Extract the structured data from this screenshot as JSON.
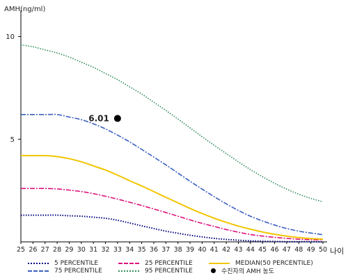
{
  "chart_data": {
    "type": "line",
    "title": "",
    "ylabel": "AMH(ng/ml)",
    "xlabel": "나이",
    "xlim": [
      25,
      50
    ],
    "ylim": [
      0,
      11
    ],
    "x_ticks": [
      25,
      26,
      27,
      28,
      29,
      30,
      31,
      32,
      33,
      34,
      35,
      36,
      37,
      38,
      39,
      40,
      41,
      42,
      43,
      44,
      45,
      46,
      47,
      48,
      49,
      50
    ],
    "y_ticks": [
      5,
      10
    ],
    "grid": false,
    "legend_position": "bottom",
    "series": [
      {
        "name": "5 PERCENTILE",
        "color": "#000080",
        "dash": "1.5 2",
        "width": 2,
        "x": [
          25,
          26,
          27,
          28,
          29,
          30,
          31,
          32,
          33,
          34,
          35,
          36,
          37,
          38,
          39,
          40,
          41,
          42,
          43,
          44,
          45,
          46,
          47,
          48,
          49,
          50
        ],
        "y": [
          1.3,
          1.3,
          1.3,
          1.3,
          1.27,
          1.25,
          1.2,
          1.15,
          1.05,
          0.92,
          0.78,
          0.65,
          0.52,
          0.42,
          0.32,
          0.24,
          0.17,
          0.12,
          0.08,
          0.05,
          0.03,
          0.02,
          0.01,
          0.01,
          0.01,
          0.0
        ]
      },
      {
        "name": "75 PERCENTILE",
        "color": "#3a5fc0",
        "dash": "7 2 2 2",
        "width": 1.6,
        "x": [
          25,
          26,
          27,
          28,
          29,
          30,
          31,
          32,
          33,
          34,
          35,
          36,
          37,
          38,
          39,
          40,
          41,
          42,
          43,
          44,
          45,
          46,
          47,
          48,
          49,
          50
        ],
        "y": [
          6.2,
          6.2,
          6.2,
          6.2,
          6.08,
          5.95,
          5.75,
          5.5,
          5.2,
          4.87,
          4.5,
          4.13,
          3.75,
          3.35,
          2.95,
          2.57,
          2.2,
          1.85,
          1.53,
          1.25,
          1.02,
          0.82,
          0.65,
          0.52,
          0.43,
          0.35
        ]
      },
      {
        "name": "25 PERCENTILE",
        "color": "#e0107a",
        "dash": "7 2 2 2",
        "width": 1.6,
        "x": [
          25,
          26,
          27,
          28,
          29,
          30,
          31,
          32,
          33,
          34,
          35,
          36,
          37,
          38,
          39,
          40,
          41,
          42,
          43,
          44,
          45,
          46,
          47,
          48,
          49,
          50
        ],
        "y": [
          2.6,
          2.6,
          2.6,
          2.58,
          2.52,
          2.45,
          2.35,
          2.22,
          2.08,
          1.93,
          1.77,
          1.6,
          1.43,
          1.25,
          1.07,
          0.9,
          0.75,
          0.6,
          0.47,
          0.36,
          0.28,
          0.22,
          0.17,
          0.13,
          0.11,
          0.09
        ]
      },
      {
        "name": "95 PERCENTILE",
        "color": "#2e8b57",
        "dash": "1.5 2",
        "width": 1.6,
        "x": [
          25,
          26,
          27,
          28,
          29,
          30,
          31,
          32,
          33,
          34,
          35,
          36,
          37,
          38,
          39,
          40,
          41,
          42,
          43,
          44,
          45,
          46,
          47,
          48,
          49,
          50
        ],
        "y": [
          9.6,
          9.5,
          9.35,
          9.2,
          9.0,
          8.75,
          8.5,
          8.2,
          7.9,
          7.55,
          7.2,
          6.8,
          6.4,
          5.98,
          5.55,
          5.12,
          4.7,
          4.3,
          3.9,
          3.52,
          3.17,
          2.85,
          2.57,
          2.32,
          2.12,
          1.95
        ]
      },
      {
        "name": "MEDIAN(50 PERCENTILE)",
        "color": "#f2c500",
        "dash": "",
        "width": 2,
        "x": [
          25,
          26,
          27,
          28,
          29,
          30,
          31,
          32,
          33,
          34,
          35,
          36,
          37,
          38,
          39,
          40,
          41,
          42,
          43,
          44,
          45,
          46,
          47,
          48,
          49,
          50
        ],
        "y": [
          4.2,
          4.2,
          4.2,
          4.15,
          4.05,
          3.9,
          3.7,
          3.5,
          3.25,
          2.98,
          2.72,
          2.45,
          2.17,
          1.9,
          1.63,
          1.38,
          1.15,
          0.95,
          0.77,
          0.62,
          0.48,
          0.37,
          0.28,
          0.21,
          0.16,
          0.13
        ]
      }
    ],
    "point": {
      "name": "수진자의 AMH 농도",
      "x": 33,
      "y": 6.01,
      "label": "6.01",
      "color": "#000000"
    }
  }
}
